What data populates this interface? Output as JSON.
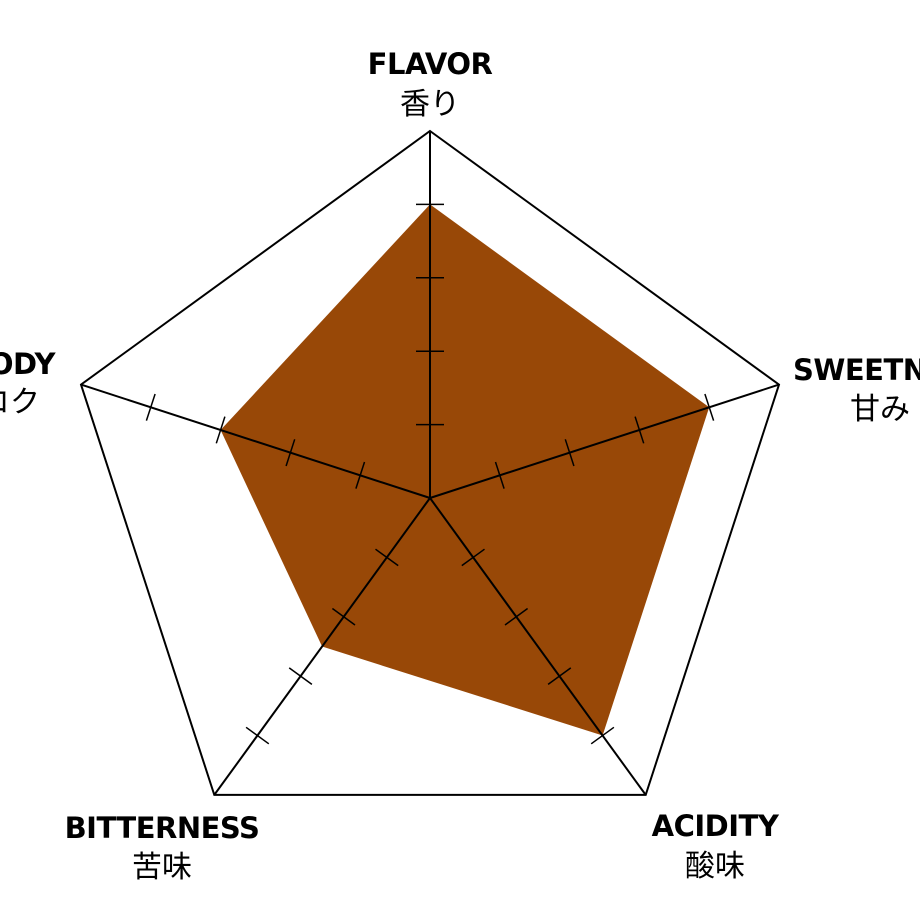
{
  "chart_data": {
    "type": "radar",
    "axes": [
      {
        "label": "FLAVOR",
        "sublabel": "香り"
      },
      {
        "label": "SWEETNESS",
        "sublabel": "甘み"
      },
      {
        "label": "ACIDITY",
        "sublabel": "酸味"
      },
      {
        "label": "BITTERNESS",
        "sublabel": "苦味"
      },
      {
        "label": "BODY",
        "sublabel": "コク"
      }
    ],
    "scale_max": 5,
    "tick_count": 4,
    "series": [
      {
        "values": [
          4,
          4,
          4,
          2.5,
          3
        ],
        "color": "#984807"
      }
    ],
    "grid_color": "#000000"
  }
}
